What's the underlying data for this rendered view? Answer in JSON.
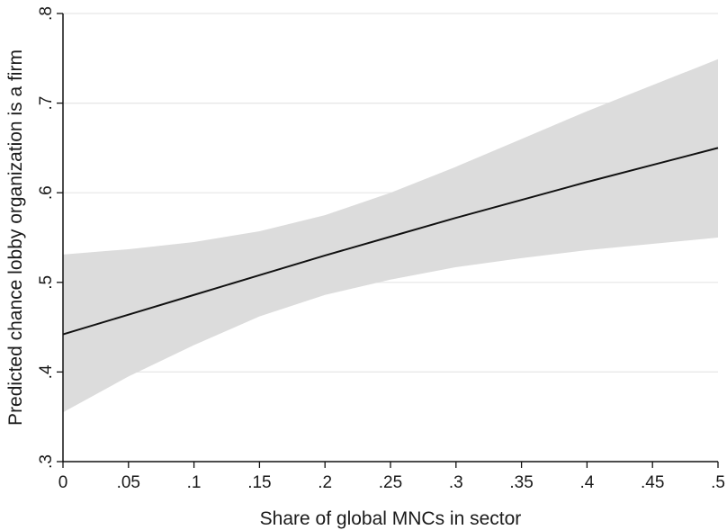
{
  "chart_data": {
    "type": "line",
    "title": "",
    "xlabel": "Share of global MNCs in sector",
    "ylabel": "Predicted chance lobby organization is a firm",
    "xlim": [
      0,
      0.5
    ],
    "ylim": [
      0.3,
      0.8
    ],
    "grid": true,
    "x_ticks": [
      {
        "value": 0,
        "label": "0"
      },
      {
        "value": 0.05,
        "label": ".05"
      },
      {
        "value": 0.1,
        "label": ".1"
      },
      {
        "value": 0.15,
        "label": ".15"
      },
      {
        "value": 0.2,
        "label": ".2"
      },
      {
        "value": 0.25,
        "label": ".25"
      },
      {
        "value": 0.3,
        "label": ".3"
      },
      {
        "value": 0.35,
        "label": ".35"
      },
      {
        "value": 0.4,
        "label": ".4"
      },
      {
        "value": 0.45,
        "label": ".45"
      },
      {
        "value": 0.5,
        "label": ".5"
      }
    ],
    "y_ticks": [
      {
        "value": 0.3,
        "label": ".3"
      },
      {
        "value": 0.4,
        "label": ".4"
      },
      {
        "value": 0.5,
        "label": ".5"
      },
      {
        "value": 0.6,
        "label": ".6"
      },
      {
        "value": 0.7,
        "label": ".7"
      },
      {
        "value": 0.8,
        "label": ".8"
      }
    ],
    "series": [
      {
        "x": [
          0,
          0.05,
          0.1,
          0.15,
          0.2,
          0.25,
          0.3,
          0.35,
          0.4,
          0.45,
          0.5
        ],
        "values": [
          0.442,
          0.464,
          0.486,
          0.508,
          0.53,
          0.551,
          0.572,
          0.592,
          0.612,
          0.631,
          0.65
        ],
        "color": "#111111"
      }
    ],
    "confidence_band": {
      "x": [
        0,
        0.05,
        0.1,
        0.15,
        0.2,
        0.25,
        0.3,
        0.35,
        0.4,
        0.45,
        0.5
      ],
      "lower": [
        0.355,
        0.395,
        0.43,
        0.462,
        0.486,
        0.503,
        0.517,
        0.527,
        0.536,
        0.543,
        0.55
      ],
      "upper": [
        0.531,
        0.537,
        0.545,
        0.557,
        0.575,
        0.6,
        0.629,
        0.66,
        0.691,
        0.72,
        0.749
      ],
      "color": "#dcdcdc"
    }
  }
}
